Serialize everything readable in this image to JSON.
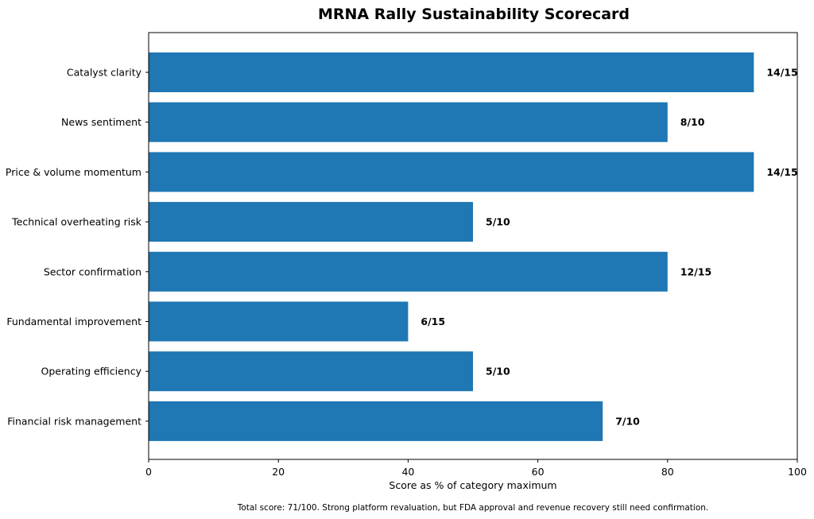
{
  "chart_data": {
    "type": "bar",
    "orientation": "horizontal",
    "title": "MRNA Rally Sustainability Scorecard",
    "xlabel": "Score as % of category maximum",
    "ylabel": "",
    "xlim": [
      0,
      100
    ],
    "x_ticks": [
      0,
      20,
      40,
      60,
      80,
      100
    ],
    "grid": false,
    "bar_color": "#1f77b4",
    "categories": [
      "Catalyst clarity",
      "News sentiment",
      "Price & volume momentum",
      "Technical overheating risk",
      "Sector confirmation",
      "Fundamental improvement",
      "Operating efficiency",
      "Financial risk management"
    ],
    "values": [
      93.3,
      80,
      93.3,
      50,
      80,
      40,
      50,
      70
    ],
    "data_labels": [
      "14/15",
      "8/10",
      "14/15",
      "5/10",
      "12/15",
      "6/15",
      "5/10",
      "7/10"
    ],
    "footnote": "Total score: 71/100. Strong platform revaluation, but FDA approval and revenue recovery still need confirmation."
  }
}
